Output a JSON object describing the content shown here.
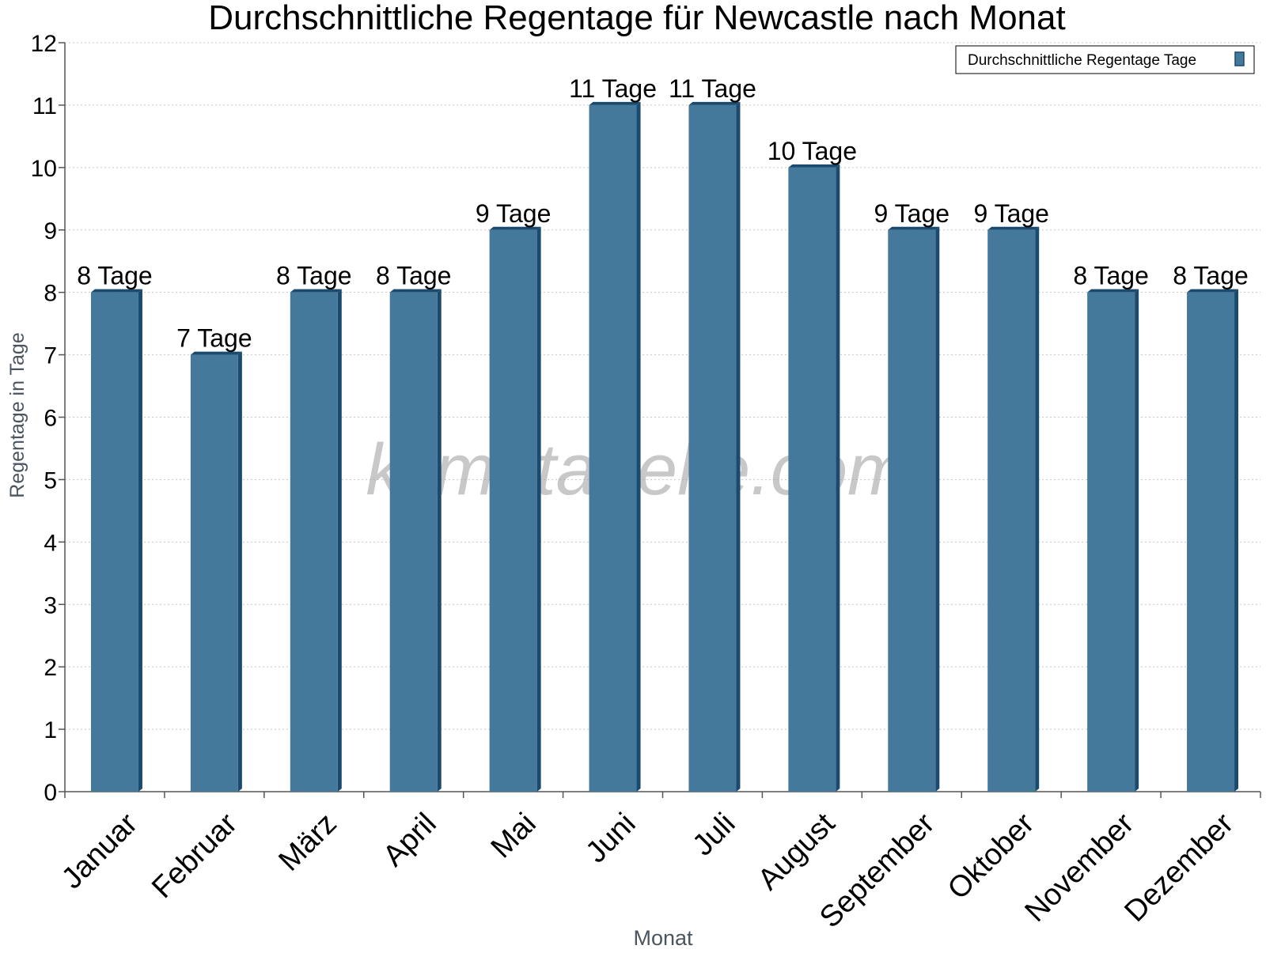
{
  "chart_data": {
    "type": "bar",
    "title": "Durchschnittliche Regentage für Newcastle nach Monat",
    "xlabel": "Monat",
    "ylabel": "Regentage in Tage",
    "categories": [
      "Januar",
      "Februar",
      "März",
      "April",
      "Mai",
      "Juni",
      "Juli",
      "August",
      "September",
      "Oktober",
      "November",
      "Dezember"
    ],
    "series": [
      {
        "name": "Durchschnittliche Regentage Tage",
        "values": [
          8,
          7,
          8,
          8,
          9,
          11,
          11,
          10,
          9,
          9,
          8,
          8
        ],
        "data_labels": [
          "8 Tage",
          "7 Tage",
          "8 Tage",
          "8 Tage",
          "9 Tage",
          "11 Tage",
          "11 Tage",
          "10 Tage",
          "9 Tage",
          "9 Tage",
          "8 Tage",
          "8 Tage"
        ],
        "color": "#45799c",
        "side_color": "#1a4a6e"
      }
    ],
    "ylim": [
      0,
      12
    ],
    "yticks": [
      0,
      1,
      2,
      3,
      4,
      5,
      6,
      7,
      8,
      9,
      10,
      11,
      12
    ],
    "grid": true,
    "legend_position": "top-right"
  },
  "watermark": "klimatabelle.com"
}
